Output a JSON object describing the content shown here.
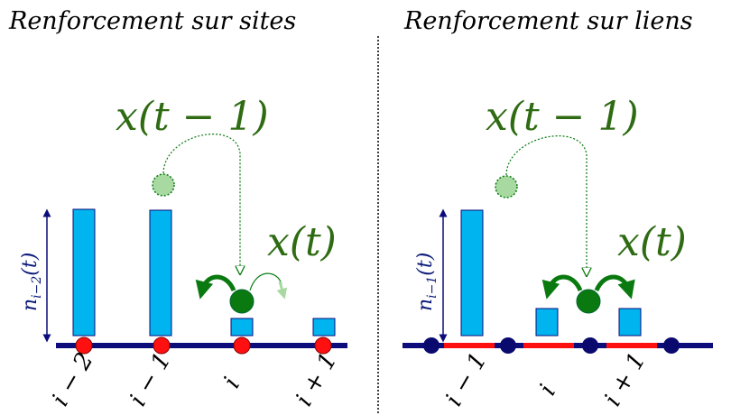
{
  "left_panel": {
    "title": "Renforcement sur sites",
    "label_prev": "x(t − 1)",
    "label_now": "x(t)",
    "y_label": "n",
    "y_label_sub": "i−2",
    "y_label_arg": "(t)",
    "ticks": [
      "i − 2",
      "i − 1",
      "i",
      "i + 1"
    ]
  },
  "right_panel": {
    "title": "Renforcement sur liens",
    "label_prev": "x(t − 1)",
    "label_now": "x(t)",
    "y_label": "n",
    "y_label_sub": "i−1",
    "y_label_arg": "(t)",
    "ticks": [
      "i − 1",
      "i",
      "i + 1"
    ]
  },
  "colors": {
    "bar": "#00b4f0",
    "axis": "#0c0c7a",
    "site_left": "#ff1010",
    "site_right": "#0a0a6e",
    "link_right": "#ff1010",
    "walker": "#0a7a10",
    "ghost": "#a7d9a0",
    "text_green": "#2e6b12"
  }
}
